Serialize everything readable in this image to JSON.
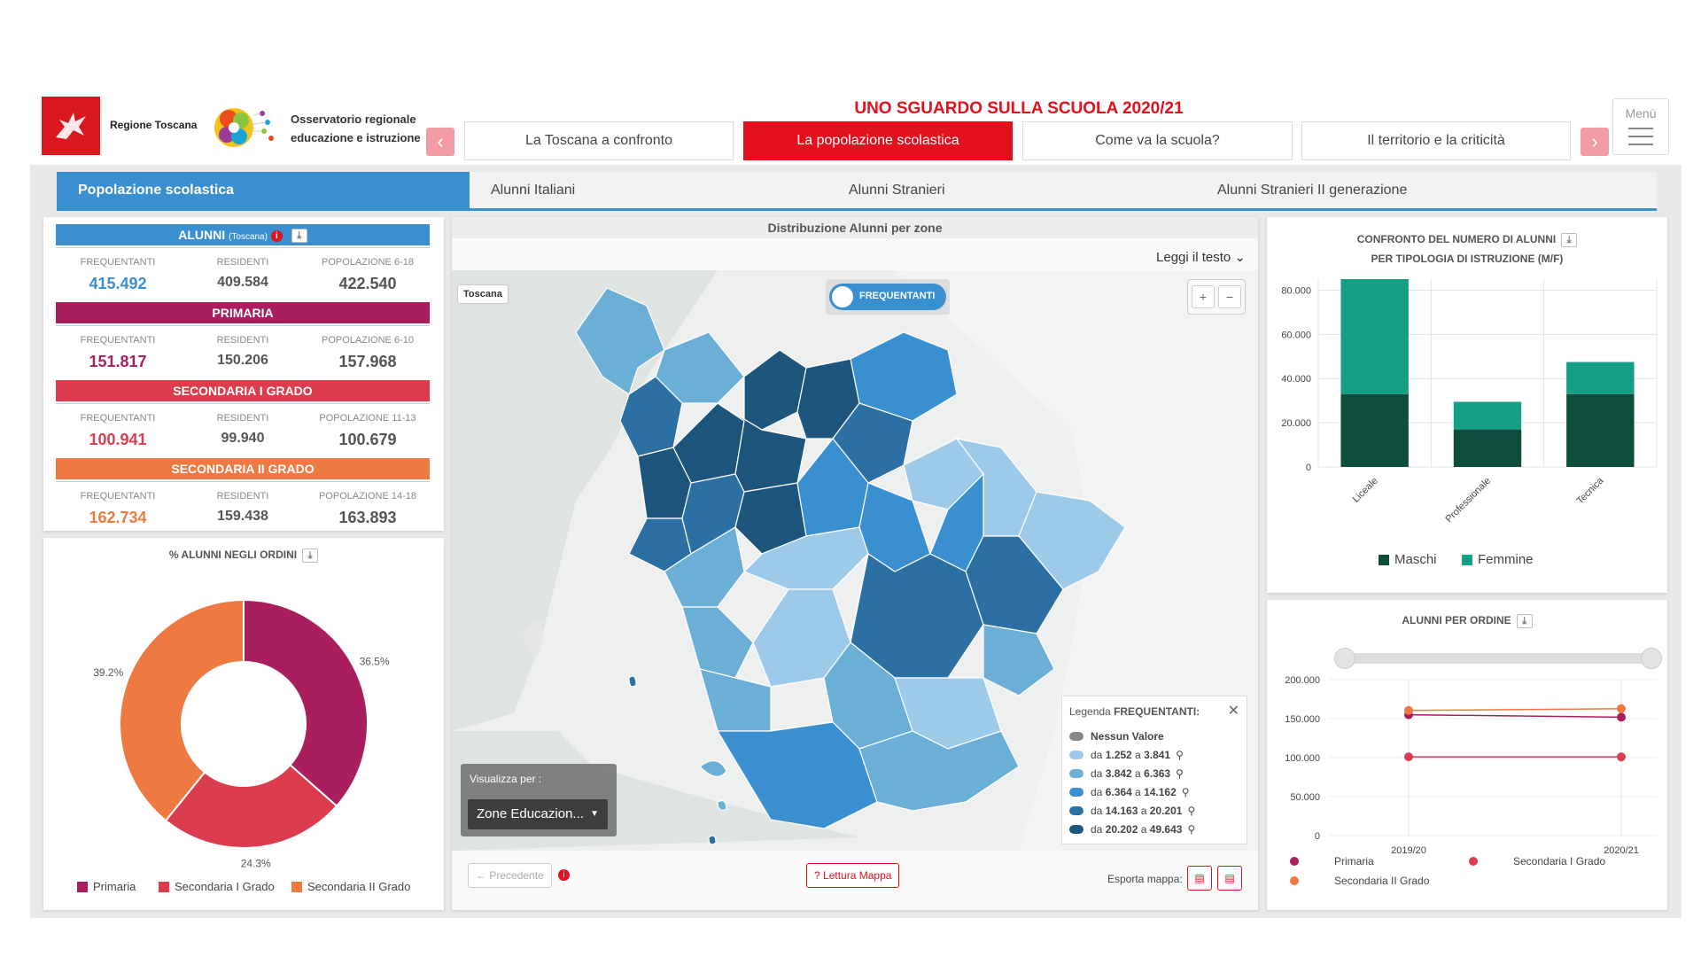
{
  "header": {
    "region_name": "Regione Toscana",
    "observatory_name": "Osservatorio regionale educazione e istruzione",
    "main_title": "UNO SGUARDO SULLA SCUOLA 2020/21",
    "menu_label": "Menù",
    "nav_tabs": [
      "La Toscana a confronto",
      "La popolazione scolastica",
      "Come va la scuola?",
      "Il territorio e la criticità"
    ]
  },
  "subtabs": [
    "Popolazione scolastica",
    "Alunni Italiani",
    "Alunni Stranieri",
    "Alunni Stranieri II generazione"
  ],
  "stats": {
    "alunni": {
      "title": "ALUNNI",
      "subtitle": "(Toscana)",
      "color": "#3a8fd0",
      "labels": [
        "FREQUENTANTI",
        "RESIDENTI",
        "POPOLAZIONE 6-18"
      ],
      "values": [
        "415.492",
        "409.584",
        "422.540"
      ]
    },
    "primaria": {
      "title": "PRIMARIA",
      "color": "#a81e5e",
      "labels": [
        "FREQUENTANTI",
        "RESIDENTI",
        "POPOLAZIONE 6-10"
      ],
      "values": [
        "151.817",
        "150.206",
        "157.968"
      ]
    },
    "sec1": {
      "title": "SECONDARIA I GRADO",
      "color": "#dc3d4e",
      "labels": [
        "FREQUENTANTI",
        "RESIDENTI",
        "POPOLAZIONE 11-13"
      ],
      "values": [
        "100.941",
        "99.940",
        "100.679"
      ]
    },
    "sec2": {
      "title": "SECONDARIA II GRADO",
      "color": "#ee7a41",
      "labels": [
        "FREQUENTANTI",
        "RESIDENTI",
        "POPOLAZIONE 14-18"
      ],
      "values": [
        "162.734",
        "159.438",
        "163.893"
      ]
    }
  },
  "donut": {
    "title": "% ALUNNI NEGLI ORDINI",
    "legend": [
      "Primaria",
      "Secondaria I Grado",
      "Secondaria II Grado"
    ]
  },
  "map": {
    "title": "Distribuzione Alunni per zone",
    "read_text": "Leggi il testo",
    "region_label": "Toscana",
    "toggle_label": "FREQUENTANTI",
    "zoom_in": "+",
    "zoom_out": "−",
    "view_label": "Visualizza per :",
    "view_select": "Zone Educazion...",
    "prev_label": "Precedente",
    "read_map": "Lettura Mappa",
    "export_label": "Esporta mappa:",
    "legend_title": "Legenda",
    "legend_title_bold": "FREQUENTANTI:",
    "legend": [
      {
        "label": "Nessun Valore",
        "color": "#888888"
      },
      {
        "from": "1.252",
        "to": "3.841",
        "color": "#9ecae9"
      },
      {
        "from": "3.842",
        "to": "6.363",
        "color": "#6baed6"
      },
      {
        "from": "6.364",
        "to": "14.162",
        "color": "#3a8fd0"
      },
      {
        "from": "14.163",
        "to": "20.201",
        "color": "#2b6fa3"
      },
      {
        "from": "20.202",
        "to": "49.643",
        "color": "#1e557c"
      }
    ],
    "legend_from": "da",
    "legend_to": "a"
  },
  "bar_card": {
    "title_line1": "CONFRONTO DEL NUMERO DI ALUNNI",
    "title_line2": "PER TIPOLOGIA DI ISTRUZIONE (M/F)",
    "ytick_labels": [
      "80.000",
      "60.000",
      "40.000",
      "20.000",
      "0"
    ]
  },
  "line_card": {
    "title": "ALUNNI PER ORDINE",
    "ytick_labels": [
      "200.000",
      "150.000",
      "100.000",
      "50.000",
      "0"
    ]
  },
  "chart_data": [
    {
      "type": "pie",
      "title": "% ALUNNI NEGLI ORDINI",
      "categories": [
        "Primaria",
        "Secondaria I Grado",
        "Secondaria II Grado"
      ],
      "values": [
        36.5,
        24.3,
        39.2
      ],
      "labels": [
        "36.5%",
        "24.3%",
        "39.2%"
      ],
      "colors": [
        "#a81e5e",
        "#dc3d4e",
        "#ee7a41"
      ]
    },
    {
      "type": "bar",
      "stacked": true,
      "title": "CONFRONTO DEL NUMERO DI ALUNNI PER TIPOLOGIA DI ISTRUZIONE (M/F)",
      "categories": [
        "Liceale",
        "Professionale",
        "Tecnica"
      ],
      "series": [
        {
          "name": "Maschi",
          "values": [
            33000,
            17000,
            33000
          ],
          "color": "#0e4d3c"
        },
        {
          "name": "Femmine",
          "values": [
            52000,
            12500,
            14500
          ],
          "color": "#15a085"
        }
      ],
      "ylim": [
        0,
        85000
      ],
      "yticks": [
        0,
        20000,
        40000,
        60000,
        80000
      ]
    },
    {
      "type": "line",
      "title": "ALUNNI PER ORDINE",
      "x": [
        "2019/20",
        "2020/21"
      ],
      "series": [
        {
          "name": "Primaria",
          "values": [
            155000,
            151817
          ],
          "color": "#a81e5e"
        },
        {
          "name": "Secondaria I Grado",
          "values": [
            101000,
            100941
          ],
          "color": "#dc3d4e"
        },
        {
          "name": "Secondaria II Grado",
          "values": [
            160500,
            162734
          ],
          "color": "#ee7a41"
        }
      ],
      "ylim": [
        0,
        200000
      ],
      "yticks": [
        0,
        50000,
        100000,
        150000,
        200000
      ]
    }
  ]
}
